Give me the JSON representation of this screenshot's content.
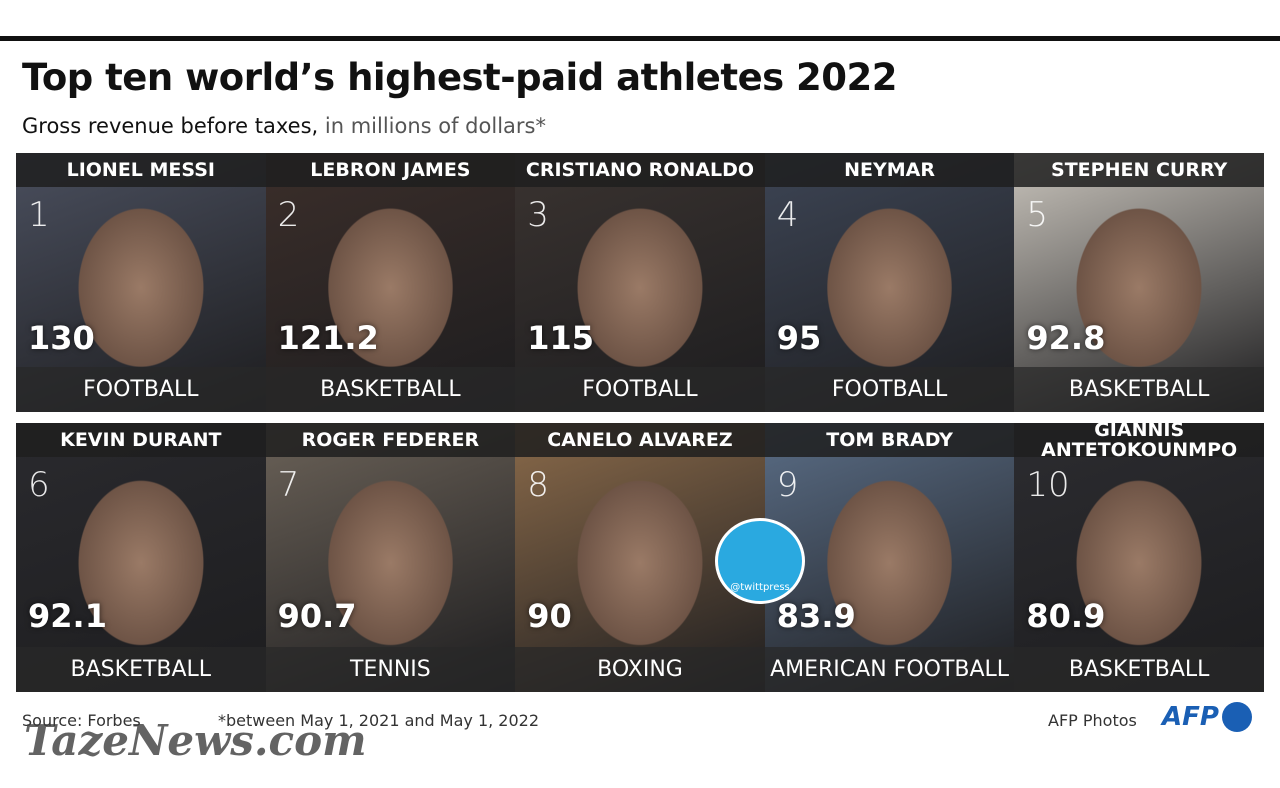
{
  "header": {
    "title": "Top ten world’s highest-paid athletes 2022",
    "subtitle_bold": "Gross revenue before taxes,",
    "subtitle_light": "in millions of dollars*"
  },
  "athletes": [
    {
      "rank": 1,
      "name": "LIONEL MESSI",
      "earnings": 130,
      "earnings_label": "130",
      "sport": "FOOTBALL"
    },
    {
      "rank": 2,
      "name": "LEBRON JAMES",
      "earnings": 121.2,
      "earnings_label": "121.2",
      "sport": "BASKETBALL"
    },
    {
      "rank": 3,
      "name": "CRISTIANO RONALDO",
      "earnings": 115,
      "earnings_label": "115",
      "sport": "FOOTBALL"
    },
    {
      "rank": 4,
      "name": "NEYMAR",
      "earnings": 95,
      "earnings_label": "95",
      "sport": "FOOTBALL"
    },
    {
      "rank": 5,
      "name": "STEPHEN CURRY",
      "earnings": 92.8,
      "earnings_label": "92.8",
      "sport": "BASKETBALL"
    },
    {
      "rank": 6,
      "name": "KEVIN DURANT",
      "earnings": 92.1,
      "earnings_label": "92.1",
      "sport": "BASKETBALL"
    },
    {
      "rank": 7,
      "name": "ROGER FEDERER",
      "earnings": 90.7,
      "earnings_label": "90.7",
      "sport": "TENNIS"
    },
    {
      "rank": 8,
      "name": "CANELO ALVAREZ",
      "earnings": 90,
      "earnings_label": "90",
      "sport": "BOXING"
    },
    {
      "rank": 9,
      "name": "TOM BRADY",
      "earnings": 83.9,
      "earnings_label": "83.9",
      "sport": "AMERICAN FOOTBALL"
    },
    {
      "rank": 10,
      "name": "GIANNIS ANTETOKOUNMPO",
      "earnings": 80.9,
      "earnings_label": "80.9",
      "sport": "BASKETBALL"
    }
  ],
  "footer": {
    "source": "Source: Forbes",
    "note": "*between May 1, 2021 and May 1, 2022",
    "credit": "AFP Photos",
    "logo": "AFP"
  },
  "watermarks": {
    "site": "TazeNews.com",
    "handle": "@twittpress"
  }
}
